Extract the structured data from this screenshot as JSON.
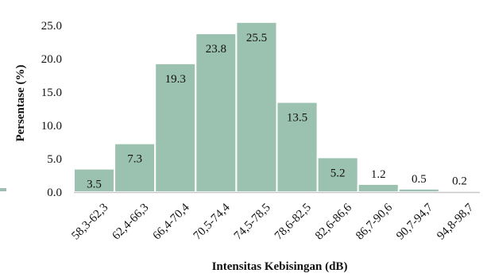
{
  "chart_data": {
    "type": "bar",
    "title": "",
    "xlabel": "Intensitas Kebisingan (dB)",
    "ylabel": "Persentase (%)",
    "ylim": [
      0,
      25
    ],
    "yticks": [
      "0.0",
      "5.0",
      "10.0",
      "15.0",
      "20.0",
      "25.0"
    ],
    "categories": [
      "58,3-62,3",
      "62,4-66,3",
      "66,4-70,4",
      "70,5-74,4",
      "74,5-78,5",
      "78,6-82,5",
      "82,6-86,6",
      "86,7-90,6",
      "90,7-94,7",
      "94,8-98,7"
    ],
    "values": [
      3.5,
      7.3,
      19.3,
      23.8,
      25.5,
      13.5,
      5.2,
      1.2,
      0.5,
      0.2
    ],
    "value_labels": [
      "3.5",
      "7.3",
      "19.3",
      "23.8",
      "25.5",
      "13.5",
      "5.2",
      "1.2",
      "0.5",
      "0.2"
    ],
    "grid": false,
    "legend": "none",
    "colors": {
      "bar_fill": "#9bc1b1",
      "bar_edge": "#ffffff",
      "axis": "#c8c8c8",
      "text": "#111111"
    }
  }
}
